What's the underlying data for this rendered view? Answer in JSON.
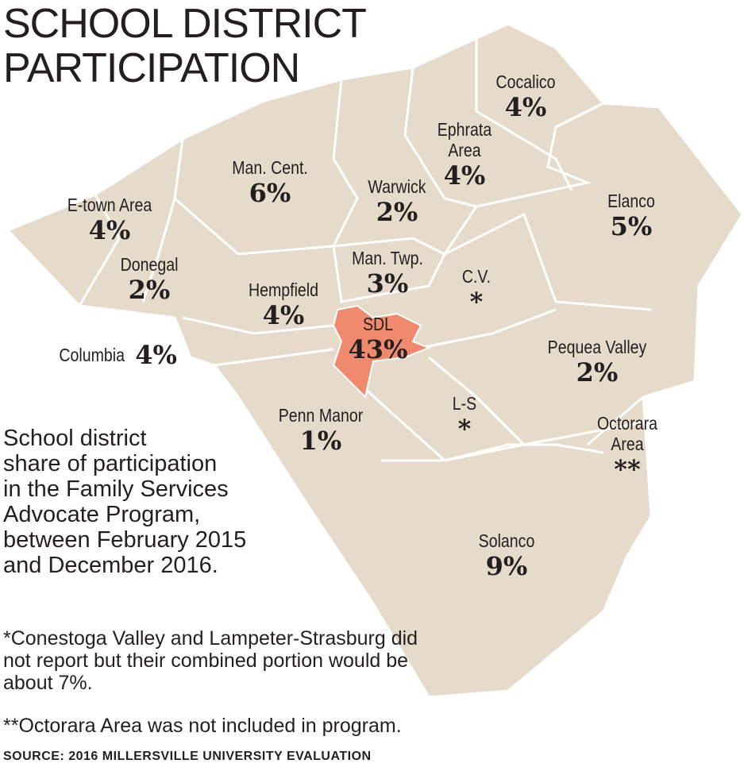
{
  "title": [
    "SCHOOL DISTRICT",
    "PARTICIPATION"
  ],
  "districts": [
    {
      "name": "Cocalico",
      "share": "4%"
    },
    {
      "name": "Ephrata Area",
      "share": "4%"
    },
    {
      "name": "Man. Cent.",
      "share": "6%"
    },
    {
      "name": "Warwick",
      "share": "2%"
    },
    {
      "name": "Elanco",
      "share": "5%"
    },
    {
      "name": "E-town Area",
      "share": "4%"
    },
    {
      "name": "Donegal",
      "share": "2%"
    },
    {
      "name": "Man. Twp.",
      "share": "3%"
    },
    {
      "name": "C.V.",
      "share": "*"
    },
    {
      "name": "Hempfield",
      "share": "4%"
    },
    {
      "name": "SDL",
      "share": "43%"
    },
    {
      "name": "Columbia",
      "share": "4%"
    },
    {
      "name": "Pequea Valley",
      "share": "2%"
    },
    {
      "name": "L-S",
      "share": "*"
    },
    {
      "name": "Penn Manor",
      "share": "1%"
    },
    {
      "name": "Octorara Area",
      "share": "**"
    },
    {
      "name": "Solanco",
      "share": "9%"
    }
  ],
  "description": [
    "School district",
    "share of participation",
    "in the Family Services",
    "Advocate Program,",
    "between February 2015",
    "and December 2016."
  ],
  "footnotes": [
    "*Conestoga Valley and Lampeter-Strasburg did not report but their combined portion would be about 7%.",
    "**Octorara Area was not included in program."
  ],
  "source": "SOURCE:  2016 MILLERSVILLE UNIVERSITY EVALUATION"
}
